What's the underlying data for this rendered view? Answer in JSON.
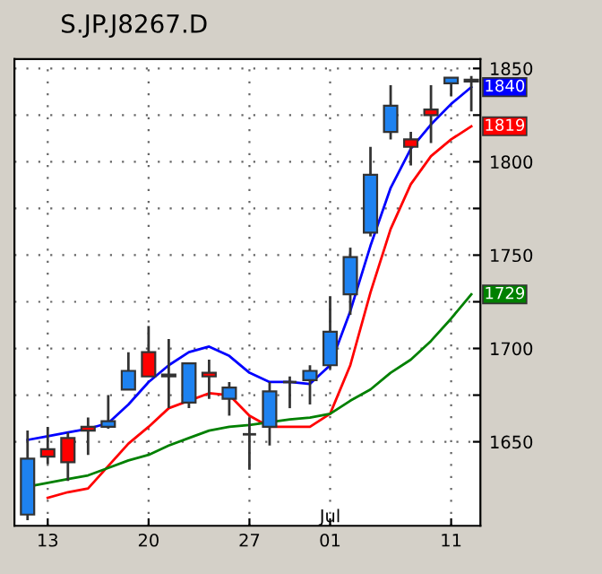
{
  "chart_data": {
    "type": "candlestick",
    "title": "S.JP.J8267.D",
    "categories": [
      null,
      "13",
      null,
      null,
      null,
      null,
      "20",
      null,
      null,
      null,
      null,
      "27",
      null,
      null,
      null,
      "01",
      null,
      null,
      null,
      null,
      null,
      "11",
      null
    ],
    "annotations": [
      "Jul"
    ],
    "ylim": [
      1605,
      1855
    ],
    "yticks": [
      1650,
      {
        "value": 1675,
        "label": null
      },
      1700,
      {
        "value": 1725,
        "label": null
      },
      1750,
      {
        "value": 1775,
        "label": null
      },
      1800,
      {
        "value": 1825,
        "label": null
      },
      1850
    ],
    "grid": true,
    "series": [
      {
        "type": "candlestick",
        "ohlc": [
          [
            1611,
            1656,
            1608,
            1641
          ],
          [
            1646,
            1658,
            1638,
            1642
          ],
          [
            1652,
            1655,
            1629,
            1639
          ],
          [
            1658,
            1663,
            1643,
            1656
          ],
          [
            1658,
            1675,
            1657,
            1661
          ],
          [
            1678,
            1698,
            1678,
            1688
          ],
          [
            1698,
            1712,
            1685,
            1685
          ],
          [
            1686,
            1705,
            1668,
            1685
          ],
          [
            1671,
            1692,
            1668,
            1692
          ],
          [
            1687,
            1694,
            1673,
            1685
          ],
          [
            1673,
            1682,
            1664,
            1679
          ],
          [
            1654,
            1663,
            1635,
            1654
          ],
          [
            1658,
            1682,
            1648,
            1677
          ],
          [
            1682,
            1685,
            1668,
            1682
          ],
          [
            1683,
            1691,
            1670,
            1688
          ],
          [
            1691,
            1728,
            1689,
            1709
          ],
          [
            1729,
            1754,
            1718,
            1749
          ],
          [
            1762,
            1808,
            1760,
            1793
          ],
          [
            1816,
            1841,
            1812,
            1830
          ],
          [
            1812,
            1816,
            1798,
            1808
          ],
          [
            1828,
            1841,
            1810,
            1825
          ],
          [
            1842,
            1845,
            1835,
            1845
          ],
          [
            1843,
            1846,
            1827,
            1844
          ]
        ],
        "colors": [
          "#1e82f0",
          "#ff0000",
          "#ff0000",
          "#ff0000",
          "#1e82f0",
          "#1e82f0",
          "#ff0000",
          "#ff0000",
          "#1e82f0",
          "#ff0000",
          "#1e82f0",
          "#333333",
          "#1e82f0",
          "#333333",
          "#1e82f0",
          "#1e82f0",
          "#1e82f0",
          "#1e82f0",
          "#1e82f0",
          "#ff0000",
          "#ff0000",
          "#1e82f0",
          "#333333"
        ]
      },
      {
        "type": "line",
        "color": "#0000ff",
        "values": [
          1651,
          1653,
          1655,
          1657,
          1660,
          1670,
          1682,
          1691,
          1698,
          1701,
          1696,
          1687,
          1682,
          1682,
          1681,
          1691,
          1720,
          1755,
          1786,
          1807,
          1820,
          1831,
          1840
        ],
        "value_labels": [
          null,
          null,
          null,
          null,
          null,
          null,
          null,
          null,
          null,
          null,
          null,
          null,
          null,
          null,
          null,
          null,
          null,
          null,
          null,
          null,
          null,
          null,
          "1840"
        ]
      },
      {
        "type": "line",
        "color": "#ff0000",
        "values": [
          null,
          1620,
          1623,
          1625,
          1637,
          1649,
          1658,
          1668,
          null,
          1676,
          1675,
          1664,
          1658,
          1658,
          1658,
          1665,
          1691,
          1730,
          1764,
          1788,
          1803,
          1812,
          1819
        ],
        "value_labels": [
          null,
          null,
          null,
          null,
          null,
          null,
          null,
          null,
          null,
          null,
          null,
          null,
          null,
          null,
          null,
          null,
          null,
          null,
          null,
          null,
          null,
          null,
          "1819"
        ]
      },
      {
        "type": "line",
        "color": "#008000",
        "values": [
          1626,
          1628,
          1630,
          1632,
          1636,
          1640,
          1643,
          1648,
          1652,
          1656,
          1658,
          1659,
          null,
          1662,
          1663,
          1665,
          1672,
          1678,
          1687,
          1694,
          1704,
          1716,
          1729
        ],
        "value_labels": [
          null,
          null,
          null,
          null,
          null,
          null,
          null,
          null,
          null,
          null,
          null,
          null,
          null,
          null,
          null,
          null,
          null,
          null,
          null,
          null,
          null,
          null,
          "1729"
        ]
      }
    ]
  }
}
